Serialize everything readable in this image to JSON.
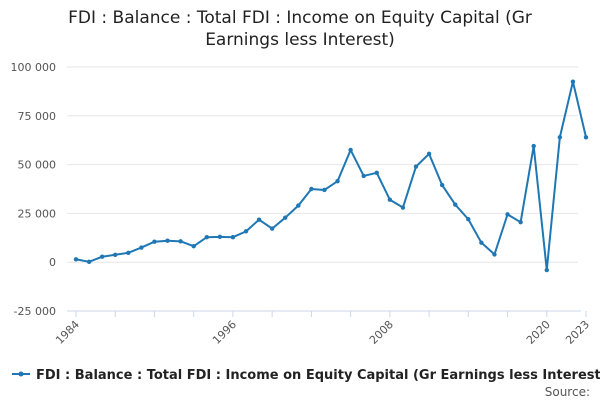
{
  "chart_data": {
    "type": "line",
    "title_lines": [
      "FDI : Balance : Total FDI : Income on Equity Capital (Gr",
      "Earnings less Interest)"
    ],
    "x_tick_labels": [
      "1984",
      "1996",
      "2008",
      "2020",
      "2023"
    ],
    "y_tick_labels": [
      "100 000",
      "75 000",
      "50 000",
      "25 000",
      "0",
      "-25 000"
    ],
    "ylim": [
      -25000,
      100000
    ],
    "xlim": [
      1984,
      2023
    ],
    "grid": true,
    "legend_position": "bottom",
    "color": "#1f77b4",
    "series": [
      {
        "name": "FDI : Balance : Total FDI : Income on Equity Capital (Gr Earnings less Interest)",
        "x": [
          1984,
          1985,
          1986,
          1987,
          1988,
          1989,
          1990,
          1991,
          1992,
          1993,
          1994,
          1995,
          1996,
          1997,
          1998,
          1999,
          2000,
          2001,
          2002,
          2003,
          2004,
          2005,
          2006,
          2007,
          2008,
          2009,
          2010,
          2011,
          2012,
          2013,
          2014,
          2015,
          2016,
          2017,
          2018,
          2019,
          2020,
          2021,
          2022,
          2023
        ],
        "values": [
          1500,
          200,
          2800,
          3800,
          4800,
          7500,
          10500,
          11000,
          10700,
          8200,
          12800,
          13000,
          12800,
          15800,
          21800,
          17200,
          22800,
          29000,
          37500,
          37000,
          41500,
          57500,
          44200,
          45800,
          32000,
          28000,
          49000,
          55500,
          39500,
          29500,
          22000,
          10000,
          4000,
          24500,
          20500,
          59500,
          -4000,
          64000,
          92500,
          64000
        ]
      }
    ],
    "source_label": "Source:"
  }
}
